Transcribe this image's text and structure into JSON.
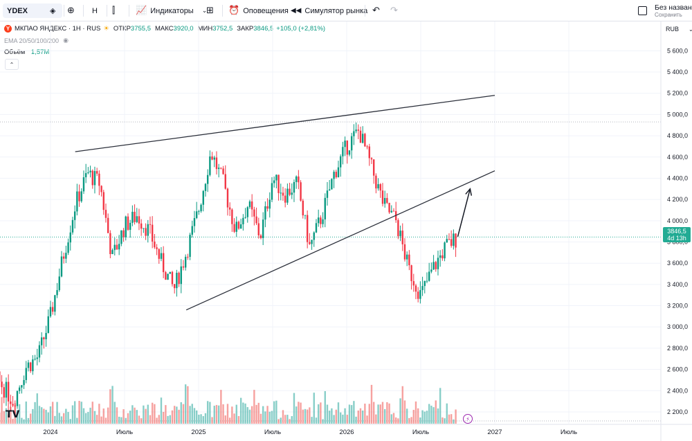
{
  "toolbar": {
    "symbol": "YDEX",
    "interval": "H",
    "indicators_label": "Индикаторы",
    "alerts_label": "Оповещения",
    "replay_label": "Симулятор рынка",
    "layout_name": "Без названи",
    "save_label": "Сохранить"
  },
  "legend": {
    "title": "МКПАО ЯНДЕКС · 1H · RUS",
    "open_label": "ОТКР",
    "open": "3755,5",
    "high_label": "МАКС",
    "high": "3920,0",
    "low_label": "МИН",
    "low": "3752,5",
    "close_label": "ЗАКР",
    "close": "3846,5",
    "change": "+105,0 (+2,81%)",
    "ema_label": "EMA 20/50/100/200",
    "volume_label": "Объём",
    "volume_value": "1,57M"
  },
  "price_axis": {
    "currency": "RUB",
    "current_price": "3846,5",
    "countdown": "4d 13h"
  },
  "colors": {
    "up": "#089981",
    "down": "#f23645",
    "vol_up": "#26a69a",
    "vol_down": "#ef5350",
    "line": "#2a2e39",
    "badge": "#22ab94"
  },
  "chart_data": {
    "type": "candlestick",
    "y_ticks": [
      2200,
      2400,
      2600,
      2800,
      3000,
      3200,
      3400,
      3600,
      3800,
      4000,
      4200,
      4400,
      4600,
      4800,
      5000,
      5200,
      5400,
      5600
    ],
    "y_tick_labels": [
      "2 200,0",
      "2 400,0",
      "2 600,0",
      "2 800,0",
      "3 000,0",
      "3 200,0",
      "3 400,0",
      "3 600,0",
      "3 800,0",
      "4 000,0",
      "4 200,0",
      "4 400,0",
      "4 600,0",
      "4 800,0",
      "5 000,0",
      "5 200,0",
      "5 400,0",
      "5 600,0"
    ],
    "ylim": [
      2050,
      5700
    ],
    "x_labels": [
      "2024",
      "Июль",
      "2025",
      "Июль",
      "2026",
      "Июль",
      "2027",
      "Июль"
    ],
    "x_label_dates": [
      "2024-01",
      "2024-07",
      "2025-01",
      "2025-07",
      "2026-01",
      "2026-07",
      "2027-01",
      "2027-07"
    ],
    "price_points": [
      [
        "2023-06",
        2550
      ],
      [
        "2023-07",
        2680
      ],
      [
        "2023-08",
        2580
      ],
      [
        "2023-09",
        2460
      ],
      [
        "2023-10",
        2300
      ],
      [
        "2023-11",
        2620
      ],
      [
        "2023-12",
        2720
      ],
      [
        "2024-01",
        3100
      ],
      [
        "2024-02",
        3650
      ],
      [
        "2024-03",
        4150
      ],
      [
        "2024-04",
        4450
      ],
      [
        "2024-05",
        4350
      ],
      [
        "2024-06",
        3650
      ],
      [
        "2024-07",
        3950
      ],
      [
        "2024-08",
        4050
      ],
      [
        "2024-09",
        3900
      ],
      [
        "2024-10",
        3600
      ],
      [
        "2024-11",
        3350
      ],
      [
        "2024-12",
        3700
      ],
      [
        "2025-01",
        4100
      ],
      [
        "2025-02",
        4650
      ],
      [
        "2025-03",
        4350
      ],
      [
        "2025-04",
        3900
      ],
      [
        "2025-05",
        4150
      ],
      [
        "2025-06",
        3850
      ],
      [
        "2025-07",
        4400
      ],
      [
        "2025-08",
        4250
      ],
      [
        "2025-09",
        4350
      ],
      [
        "2025-10",
        3750
      ],
      [
        "2025-11",
        4050
      ],
      [
        "2025-12",
        4450
      ],
      [
        "2026-01",
        4700
      ],
      [
        "2026-02",
        4850
      ],
      [
        "2026-03",
        4500
      ],
      [
        "2026-04",
        4150
      ],
      [
        "2026-05",
        4000
      ],
      [
        "2026-06",
        3550
      ],
      [
        "2026-07",
        3300
      ],
      [
        "2026-08",
        3550
      ],
      [
        "2026-09",
        3750
      ],
      [
        "2026-10",
        3846.5
      ]
    ],
    "trendlines": [
      {
        "from": [
          "2024-03",
          4650
        ],
        "to": [
          "2027-01",
          5180
        ]
      },
      {
        "from": [
          "2024-12",
          3160
        ],
        "to": [
          "2027-01",
          4470
        ]
      }
    ],
    "arrow": {
      "from": [
        "2026-10",
        3850
      ],
      "to": [
        "2026-11",
        4300
      ]
    },
    "dashed_lines": [
      4930,
      3846.5,
      2115
    ]
  }
}
